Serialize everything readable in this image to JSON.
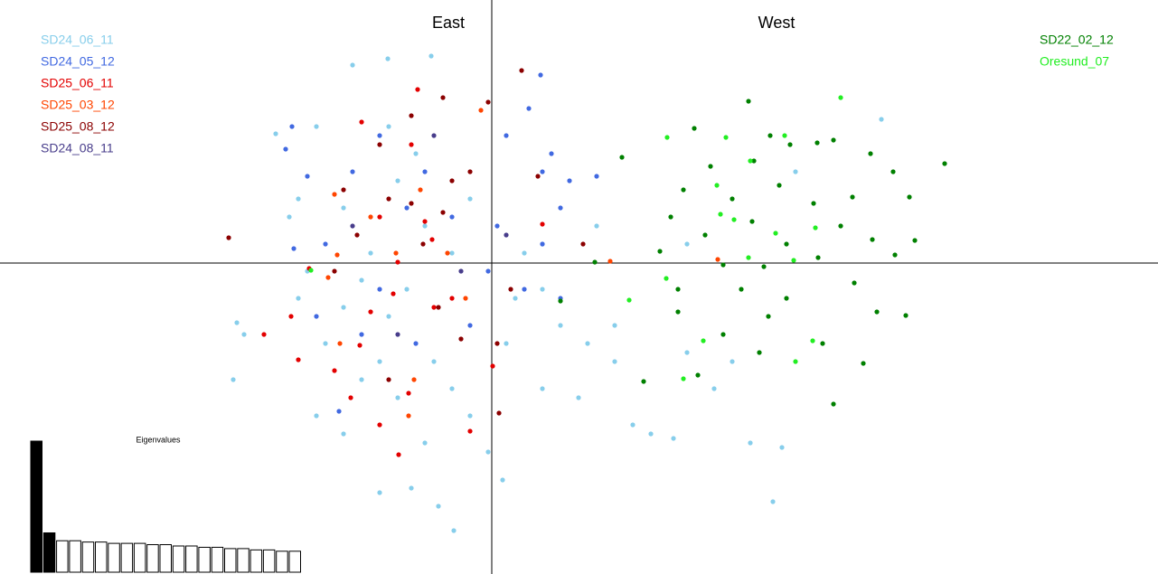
{
  "chart_data": [
    {
      "type": "scatter",
      "xlim": [
        -10.88,
        14.74
      ],
      "ylim": [
        -6.88,
        5.82
      ],
      "annotations": [
        "East",
        "West"
      ],
      "series": [
        {
          "name": "SD24_06_11",
          "color": "#87ceeb",
          "legend": "top-left",
          "x": [
            -3.08,
            -2.3,
            -1.34,
            -4.78,
            -3.88,
            -4.48,
            -4.08,
            -5.64,
            -5.48,
            -5.72,
            -4.28,
            -3.68,
            -3.88,
            -3.28,
            -2.88,
            -2.48,
            -1.78,
            -1.18,
            -0.84,
            -1.48,
            -2.28,
            -1.88,
            -1.28,
            -0.88,
            -0.48,
            -0.08,
            0.24,
            0.32,
            0.52,
            1.12,
            1.52,
            2.12,
            2.72,
            3.12,
            3.52,
            4.02,
            4.92,
            5.72,
            6.22,
            6.42,
            5.32,
            4.32,
            6.72,
            8.62,
            -2.08,
            -1.48,
            -2.68,
            -3.28,
            -0.88,
            -0.48,
            0.72,
            1.12,
            2.32,
            4.32,
            2.72,
            1.92,
            1.12,
            -2.28,
            -1.68,
            -2.88,
            -3.28,
            -2.48,
            -2.08,
            -4.28
          ],
          "y": [
            4.38,
            4.52,
            4.58,
            2.86,
            3.02,
            1.02,
            -0.18,
            -1.32,
            -1.58,
            -2.58,
            -0.78,
            -1.78,
            -3.38,
            -3.78,
            -2.58,
            -5.08,
            -4.98,
            -5.38,
            -5.92,
            -3.98,
            -1.18,
            -0.58,
            -2.18,
            -2.78,
            -3.38,
            -4.18,
            -4.8,
            -1.78,
            -0.78,
            -0.58,
            -1.38,
            -1.78,
            -1.38,
            -3.58,
            -3.78,
            -3.88,
            -2.78,
            -3.98,
            -5.28,
            -4.08,
            -2.18,
            0.42,
            2.02,
            3.18,
            1.82,
            0.82,
            0.22,
            1.22,
            0.22,
            1.42,
            0.22,
            0.42,
            0.82,
            -1.98,
            -2.18,
            -2.98,
            -2.78,
            3.02,
            2.42,
            -0.38,
            -0.98,
            -2.18,
            -2.98,
            1.42
          ]
        },
        {
          "name": "SD24_05_12",
          "color": "#4169e1",
          "legend": "top-left",
          "x": [
            1.08,
            -4.42,
            -4.56,
            -4.08,
            -3.08,
            -2.48,
            -1.48,
            -0.88,
            0.32,
            0.82,
            1.12,
            1.72,
            2.32,
            1.52,
            1.12,
            -0.08,
            0.72,
            1.52,
            -2.48,
            -2.88,
            -3.88,
            -3.38,
            -1.68,
            -0.48,
            -1.88,
            -3.68,
            -4.38,
            1.32,
            0.12
          ],
          "y": [
            4.16,
            3.02,
            2.52,
            1.92,
            2.02,
            2.82,
            2.02,
            1.02,
            2.82,
            3.42,
            2.02,
            1.82,
            1.92,
            1.22,
            0.42,
            -0.18,
            -0.58,
            -0.78,
            -0.58,
            -1.58,
            -1.18,
            -3.28,
            -1.78,
            -1.38,
            1.22,
            0.42,
            0.32,
            2.42,
            0.82
          ]
        },
        {
          "name": "SD25_06_11",
          "color": "#e30000",
          "legend": "top-left",
          "x": [
            -1.64,
            -2.88,
            -1.78,
            -2.48,
            -1.48,
            -2.08,
            -1.32,
            -4.04,
            -4.44,
            -5.04,
            -4.28,
            -3.48,
            -3.12,
            -1.84,
            -2.48,
            -2.06,
            -0.48,
            0.02,
            -0.88,
            -2.18,
            -2.68,
            -1.28,
            1.12,
            -2.92
          ],
          "y": [
            3.84,
            3.12,
            2.62,
            1.02,
            0.92,
            0.02,
            0.52,
            -0.12,
            -1.18,
            -1.58,
            -2.14,
            -2.38,
            -2.98,
            -2.88,
            -3.58,
            -4.24,
            -3.72,
            -2.28,
            -0.78,
            -0.68,
            -1.08,
            -0.98,
            0.86,
            -1.82
          ]
        },
        {
          "name": "SD25_03_12",
          "color": "#ff4500",
          "legend": "top-left",
          "x": [
            -0.24,
            -3.48,
            -2.68,
            -1.58,
            -2.12,
            -0.98,
            -3.42,
            -3.62,
            -3.36,
            -1.72,
            -1.84,
            5.0,
            2.62,
            -0.58
          ],
          "y": [
            3.38,
            1.52,
            1.02,
            1.62,
            0.22,
            0.22,
            0.18,
            -0.32,
            -1.78,
            -2.58,
            -3.38,
            0.08,
            0.04,
            -0.78
          ]
        },
        {
          "name": "SD25_08_12",
          "color": "#8b0000",
          "legend": "top-left",
          "x": [
            -1.08,
            -0.08,
            -1.78,
            -2.48,
            -3.28,
            -2.28,
            -1.78,
            -1.52,
            -1.08,
            -0.48,
            1.02,
            2.02,
            -5.82,
            -3.48,
            -1.18,
            -0.68,
            0.12,
            0.42,
            -2.28,
            0.16,
            -2.98,
            -0.88,
            0.66
          ],
          "y": [
            3.66,
            3.56,
            3.26,
            2.62,
            1.62,
            1.42,
            1.32,
            0.42,
            1.12,
            2.02,
            1.92,
            0.42,
            0.56,
            -0.18,
            -0.98,
            -1.68,
            -1.78,
            -0.58,
            -2.58,
            -3.32,
            0.62,
            1.82,
            4.26
          ]
        },
        {
          "name": "SD24_08_11",
          "color": "#483d8b",
          "legend": "top-left",
          "x": [
            -1.28,
            0.32,
            -2.08,
            -3.08,
            -0.68
          ],
          "y": [
            2.82,
            0.62,
            -1.58,
            0.82,
            -0.18
          ]
        },
        {
          "name": "SD22_02_12",
          "color": "#008000",
          "legend": "top-right",
          "x": [
            5.68,
            4.48,
            6.16,
            7.2,
            7.56,
            8.38,
            10.02,
            2.88,
            4.84,
            5.8,
            6.6,
            8.88,
            9.24,
            4.24,
            5.32,
            6.36,
            7.12,
            7.98,
            3.96,
            4.72,
            5.76,
            6.52,
            7.72,
            8.42,
            9.36,
            3.72,
            5.12,
            6.02,
            7.22,
            8.92,
            2.28,
            1.52,
            4.12,
            5.52,
            6.52,
            8.02,
            9.16,
            8.52,
            4.12,
            6.12,
            5.12,
            7.32,
            8.22,
            3.36,
            4.56,
            7.56,
            5.92
          ],
          "y": [
            3.58,
            2.98,
            2.82,
            2.66,
            2.72,
            2.42,
            2.2,
            2.34,
            2.14,
            2.26,
            2.62,
            2.02,
            1.46,
            1.62,
            1.42,
            1.72,
            1.32,
            1.46,
            1.02,
            0.62,
            0.92,
            0.42,
            0.82,
            0.52,
            0.5,
            0.26,
            -0.04,
            -0.08,
            0.12,
            0.18,
            0.02,
            -0.84,
            -0.58,
            -0.58,
            -0.78,
            -0.44,
            -1.16,
            -1.08,
            -1.08,
            -1.18,
            -1.58,
            -1.78,
            -2.22,
            -2.62,
            -2.48,
            -3.12,
            -1.98
          ]
        },
        {
          "name": "Oresund_07",
          "color": "#22ee22",
          "legend": "top-right",
          "x": [
            7.72,
            3.88,
            5.18,
            6.48,
            5.72,
            4.98,
            5.06,
            5.36,
            6.28,
            7.16,
            6.68,
            5.68,
            3.86,
            3.04,
            4.68,
            7.1,
            6.72,
            4.24,
            -4.0
          ],
          "y": [
            3.66,
            2.78,
            2.78,
            2.82,
            2.26,
            1.72,
            1.08,
            0.96,
            0.66,
            0.78,
            0.06,
            0.12,
            -0.34,
            -0.82,
            -1.72,
            -1.72,
            -2.18,
            -2.56,
            -0.16
          ]
        }
      ]
    },
    {
      "type": "bar",
      "title": "Eigenvalues",
      "ylim": [
        0,
        100
      ],
      "filled": 2,
      "values": [
        100,
        30,
        24,
        24,
        23,
        23,
        22,
        22,
        22,
        21,
        21,
        20,
        20,
        19,
        19,
        18,
        18,
        17,
        17,
        16,
        16
      ]
    }
  ]
}
